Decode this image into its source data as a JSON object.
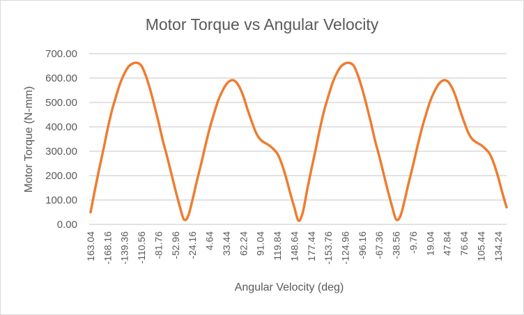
{
  "chart_data": {
    "type": "line",
    "title": "Motor Torque vs Angular Velocity",
    "xlabel": "Angular Velocity (deg)",
    "ylabel": "Motor Torque (N-mm)",
    "ylim": [
      0,
      700
    ],
    "y_ticks": [
      "0.00",
      "100.00",
      "200.00",
      "300.00",
      "400.00",
      "500.00",
      "600.00",
      "700.00"
    ],
    "y_tick_values": [
      0,
      100,
      200,
      300,
      400,
      500,
      600,
      700
    ],
    "grid": true,
    "legend": "none",
    "series_color": "#ED7D31",
    "x_tick_labels": [
      "163.04",
      "-168.16",
      "-139.36",
      "-110.56",
      "-81.76",
      "-52.96",
      "-24.16",
      "4.64",
      "33.44",
      "62.24",
      "91.04",
      "119.84",
      "148.64",
      "177.44",
      "-153.76",
      "-124.96",
      "-96.16",
      "-67.36",
      "-38.56",
      "-9.76",
      "19.04",
      "47.84",
      "76.64",
      "105.44",
      "134.24"
    ],
    "x_tick_every": 4,
    "series": [
      {
        "name": "Motor Torque",
        "values": [
          50,
          140,
          225,
          305,
          390,
          465,
          525,
          580,
          620,
          648,
          660,
          662,
          650,
          610,
          555,
          490,
          420,
          345,
          280,
          210,
          140,
          75,
          20,
          35,
          100,
          175,
          245,
          320,
          390,
          450,
          505,
          545,
          575,
          590,
          588,
          565,
          525,
          470,
          420,
          375,
          348,
          335,
          325,
          310,
          290,
          250,
          195,
          130,
          70,
          15,
          50,
          140,
          225,
          305,
          390,
          465,
          525,
          580,
          620,
          648,
          660,
          662,
          650,
          610,
          555,
          490,
          420,
          345,
          280,
          210,
          140,
          75,
          20,
          35,
          100,
          175,
          245,
          320,
          390,
          450,
          505,
          545,
          575,
          590,
          588,
          565,
          525,
          470,
          420,
          375,
          348,
          335,
          325,
          310,
          290,
          250,
          195,
          130,
          70
        ]
      }
    ]
  }
}
